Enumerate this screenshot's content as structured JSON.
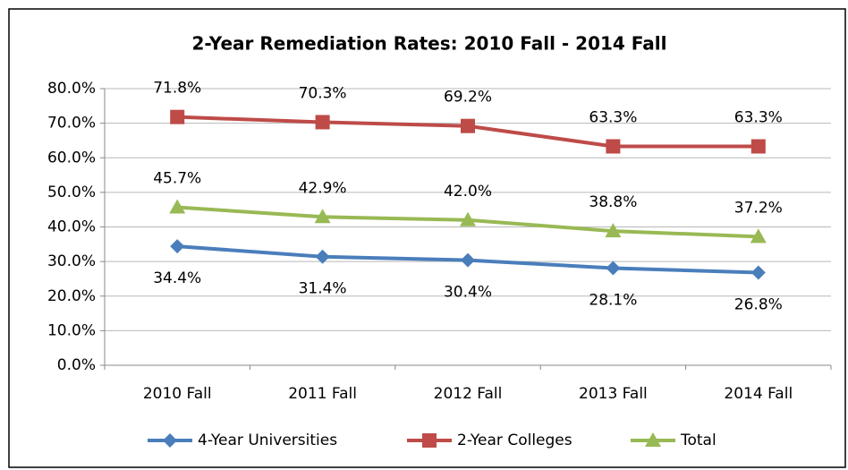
{
  "chart_data": {
    "type": "line",
    "title": "2-Year Remediation Rates: 2010 Fall - 2014 Fall",
    "categories": [
      "2010 Fall",
      "2011 Fall",
      "2012 Fall",
      "2013 Fall",
      "2014 Fall"
    ],
    "series": [
      {
        "name": "4-Year Universities",
        "color": "#4a7ebb",
        "marker": "diamond",
        "label_position": "below",
        "values": [
          34.4,
          31.4,
          30.4,
          28.1,
          26.8
        ],
        "value_labels": [
          "34.4%",
          "31.4%",
          "30.4%",
          "28.1%",
          "26.8%"
        ]
      },
      {
        "name": "2-Year Colleges",
        "color": "#be4b48",
        "marker": "square",
        "label_position": "above",
        "values": [
          71.8,
          70.3,
          69.2,
          63.3,
          63.3
        ],
        "value_labels": [
          "71.8%",
          "70.3%",
          "69.2%",
          "63.3%",
          "63.3%"
        ]
      },
      {
        "name": "Total",
        "color": "#98b954",
        "marker": "triangle",
        "label_position": "above",
        "values": [
          45.7,
          42.9,
          42.0,
          38.8,
          37.2
        ],
        "value_labels": [
          "45.7%",
          "42.9%",
          "42.0%",
          "38.8%",
          "37.2%"
        ]
      }
    ],
    "ylim": [
      0,
      80
    ],
    "yticks": [
      {
        "value": 0,
        "label": "0.0%"
      },
      {
        "value": 10,
        "label": "10.0%"
      },
      {
        "value": 20,
        "label": "20.0%"
      },
      {
        "value": 30,
        "label": "30.0%"
      },
      {
        "value": 40,
        "label": "40.0%"
      },
      {
        "value": 50,
        "label": "50.0%"
      },
      {
        "value": 60,
        "label": "60.0%"
      },
      {
        "value": 70,
        "label": "70.0%"
      },
      {
        "value": 80,
        "label": "80.0%"
      }
    ],
    "grid": true,
    "legend": "bottom"
  }
}
